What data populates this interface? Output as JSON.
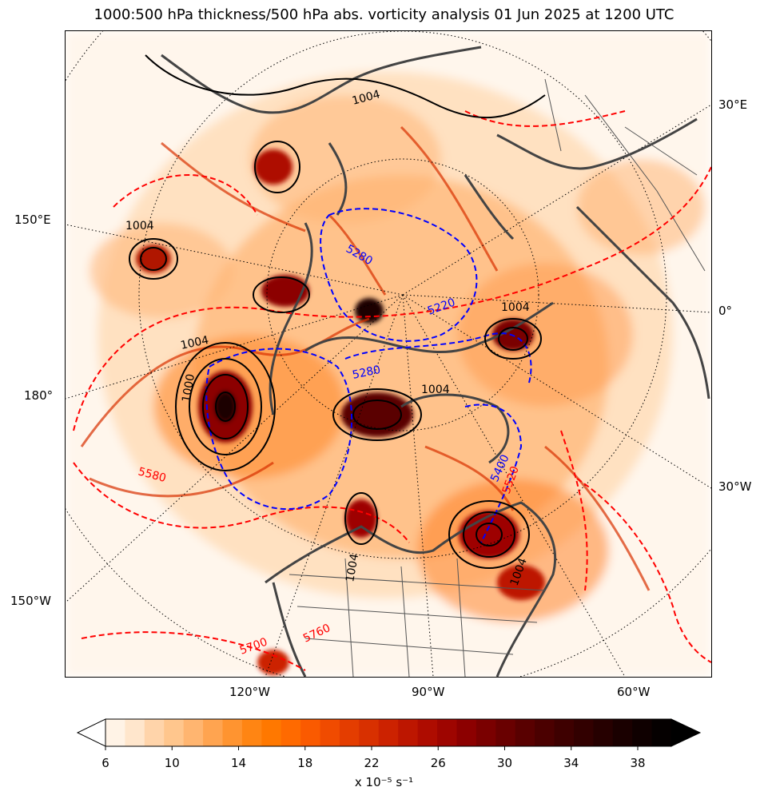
{
  "title": "1000:500 hPa thickness/500 hPa abs. vorticity analysis 01 Jun 2025 at 1200 UTC",
  "map": {
    "projection": "north-polar-stereographic",
    "fill_field": "500 hPa absolute vorticity",
    "contours": {
      "mslp_black_labels": [
        "1004",
        "1004",
        "1004",
        "1004",
        "1000",
        "1004",
        "1004",
        "1004"
      ],
      "thickness_blue_labels": [
        "5280",
        "5220",
        "5280",
        "5400"
      ],
      "thickness_red_labels": [
        "5580",
        "5520",
        "5700",
        "5760"
      ]
    },
    "lon_labels_left": [
      "150°E",
      "180°",
      "150°W"
    ],
    "lon_labels_right": [
      "30°E",
      "0°",
      "30°W"
    ],
    "lon_labels_bottom": [
      "120°W",
      "90°W",
      "60°W"
    ]
  },
  "colorbar": {
    "tick_labels": [
      "6",
      "10",
      "14",
      "18",
      "22",
      "26",
      "30",
      "34",
      "38"
    ],
    "units": "x 10⁻⁵ s⁻¹",
    "colors": [
      "#fff3e6",
      "#ffe6cc",
      "#ffd4aa",
      "#ffc68d",
      "#ffb570",
      "#ffa450",
      "#ff9430",
      "#ff8513",
      "#ff7800",
      "#ff6a00",
      "#fa5a00",
      "#f04b00",
      "#e43d00",
      "#d83000",
      "#cc2200",
      "#bd1600",
      "#ae0c00",
      "#9e0500",
      "#8c0000",
      "#7a0000",
      "#690000",
      "#590000",
      "#4b0000",
      "#3e0000",
      "#320000",
      "#260000",
      "#1a0000",
      "#0f0000",
      "#050000"
    ],
    "under_color": "#ffffff",
    "over_color": "#000000"
  }
}
